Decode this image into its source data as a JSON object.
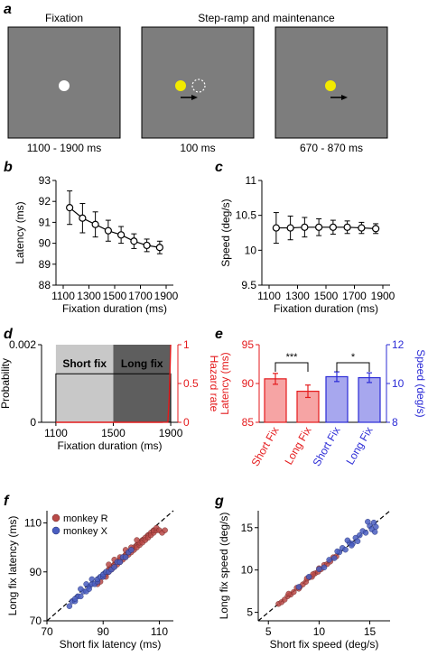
{
  "panel_a": {
    "letter": "a",
    "headers": [
      "Fixation",
      "Step-ramp and maintenance"
    ],
    "durations": [
      "1100 - 1900 ms",
      "100 ms",
      "670 - 870 ms"
    ],
    "colors": {
      "screen": "#7d7d7d",
      "fixation": "#ffffff",
      "target": "#f2ea00",
      "arrow": "#000000"
    }
  },
  "chart_data": [
    {
      "panel": "b",
      "type": "line",
      "xlabel": "Fixation duration (ms)",
      "ylabel": "Latency (ms)",
      "xticks": [
        "1100",
        "1300",
        "1500",
        "1700",
        "1900"
      ],
      "yticks": [
        "88",
        "89",
        "90",
        "91",
        "92",
        "93"
      ],
      "xlim": [
        1100,
        1900
      ],
      "ylim": [
        88,
        93
      ],
      "series": [
        {
          "x": [
            1150,
            1250,
            1350,
            1450,
            1550,
            1650,
            1750,
            1850
          ],
          "y": [
            91.7,
            91.2,
            90.9,
            90.6,
            90.4,
            90.1,
            89.9,
            89.8
          ],
          "err": [
            0.8,
            0.7,
            0.6,
            0.5,
            0.4,
            0.35,
            0.3,
            0.3
          ]
        }
      ]
    },
    {
      "panel": "c",
      "type": "line",
      "xlabel": "Fixation duration (ms)",
      "ylabel": "Speed (deg/s)",
      "xticks": [
        "1100",
        "1300",
        "1500",
        "1700",
        "1900"
      ],
      "yticks": [
        "9.5",
        "10",
        "10.5",
        "11"
      ],
      "xlim": [
        1100,
        1900
      ],
      "ylim": [
        9.5,
        11
      ],
      "series": [
        {
          "x": [
            1150,
            1250,
            1350,
            1450,
            1550,
            1650,
            1750,
            1850
          ],
          "y": [
            10.32,
            10.32,
            10.33,
            10.33,
            10.33,
            10.33,
            10.32,
            10.31
          ],
          "err": [
            0.22,
            0.17,
            0.14,
            0.12,
            0.1,
            0.09,
            0.08,
            0.07
          ]
        }
      ]
    },
    {
      "panel": "d",
      "type": "area",
      "xlabel": "Fixation duration (ms)",
      "ylabel": "Probability",
      "ylabel_right": "Hazard rate",
      "xticks": [
        "1100",
        "1500",
        "1900"
      ],
      "yticks_left": [
        "0",
        "0.002"
      ],
      "yticks_right": [
        "0",
        "0.5",
        "1"
      ],
      "regions": [
        {
          "label": "Short fix",
          "x": [
            1100,
            1500
          ],
          "color": "#c8c8c8"
        },
        {
          "label": "Long fix",
          "x": [
            1500,
            1900
          ],
          "color": "#5e5e5e"
        }
      ],
      "uniform_probability": 0.00125,
      "xlim": [
        1000,
        1950
      ],
      "ylim_right": [
        0,
        1
      ],
      "colors": {
        "hazard": "#e41a1c"
      }
    },
    {
      "panel": "e",
      "type": "bar",
      "categories": [
        "Short Fix",
        "Long Fix",
        "Short Fix",
        "Long Fix"
      ],
      "ylabel_left": "Latency (ms)",
      "ylabel_right": "Speed (deg/s)",
      "yticks_left": [
        "85",
        "90",
        "95"
      ],
      "yticks_right": [
        "8",
        "10",
        "12"
      ],
      "ylim_left": [
        85,
        95
      ],
      "ylim_right": [
        8,
        12
      ],
      "latency": {
        "values": [
          90.6,
          89.0
        ],
        "err": [
          0.7,
          0.8
        ]
      },
      "speed": {
        "values": [
          10.35,
          10.3
        ],
        "err": [
          0.25,
          0.25
        ]
      },
      "significance": [
        "***",
        "*"
      ],
      "colors": {
        "latency": "#e41a1c",
        "latency_fill": "#f6a4a4",
        "speed": "#2b2bd6",
        "speed_fill": "#a7a7ee"
      }
    },
    {
      "panel": "f",
      "type": "scatter",
      "xlabel": "Short fix latency (ms)",
      "ylabel": "Long fix latency (ms)",
      "ticks": [
        "70",
        "90",
        "110"
      ],
      "xlim": [
        70,
        115
      ],
      "ylim": [
        70,
        115
      ],
      "legend": [
        "monkey R",
        "monkey X"
      ],
      "legend_position": "top-left",
      "colors": {
        "monkey_r": "#b94a48",
        "monkey_x": "#4a5ec0"
      },
      "monkey_r": [
        [
          88,
          85
        ],
        [
          89,
          86
        ],
        [
          90,
          88
        ],
        [
          91,
          89
        ],
        [
          91,
          88
        ],
        [
          92,
          90
        ],
        [
          92,
          91
        ],
        [
          93,
          91
        ],
        [
          93,
          92
        ],
        [
          94,
          93
        ],
        [
          94,
          92
        ],
        [
          95,
          94
        ],
        [
          95,
          93
        ],
        [
          96,
          95
        ],
        [
          96,
          94
        ],
        [
          97,
          95
        ],
        [
          97,
          96
        ],
        [
          98,
          96
        ],
        [
          98,
          97
        ],
        [
          99,
          97
        ],
        [
          99,
          98
        ],
        [
          100,
          99
        ],
        [
          100,
          98
        ],
        [
          101,
          100
        ],
        [
          101,
          99
        ],
        [
          102,
          101
        ],
        [
          102,
          100
        ],
        [
          103,
          101
        ],
        [
          103,
          102
        ],
        [
          104,
          103
        ],
        [
          104,
          102
        ],
        [
          105,
          104
        ],
        [
          105,
          103
        ],
        [
          106,
          105
        ],
        [
          106,
          104
        ],
        [
          107,
          106
        ],
        [
          107,
          105
        ],
        [
          108,
          106
        ],
        [
          108,
          107
        ],
        [
          109,
          107
        ],
        [
          109,
          108
        ],
        [
          110,
          107
        ],
        [
          111,
          106
        ],
        [
          112,
          107
        ],
        [
          98,
          99
        ],
        [
          96,
          96
        ],
        [
          94,
          95
        ],
        [
          92,
          93
        ],
        [
          100,
          100
        ],
        [
          102,
          103
        ]
      ],
      "monkey_x": [
        [
          78,
          76
        ],
        [
          79,
          78
        ],
        [
          80,
          78
        ],
        [
          81,
          80
        ],
        [
          82,
          80
        ],
        [
          83,
          82
        ],
        [
          84,
          82
        ],
        [
          85,
          84
        ],
        [
          85,
          83
        ],
        [
          86,
          85
        ],
        [
          87,
          85
        ],
        [
          88,
          86
        ],
        [
          88,
          87
        ],
        [
          89,
          88
        ],
        [
          90,
          88
        ],
        [
          90,
          89
        ],
        [
          91,
          90
        ],
        [
          92,
          90
        ],
        [
          93,
          91
        ],
        [
          94,
          92
        ],
        [
          95,
          94
        ],
        [
          96,
          94
        ],
        [
          97,
          96
        ],
        [
          98,
          96
        ],
        [
          99,
          98
        ],
        [
          100,
          99
        ],
        [
          84,
          85
        ],
        [
          86,
          87
        ],
        [
          80,
          79
        ],
        [
          82,
          83
        ]
      ]
    },
    {
      "panel": "g",
      "type": "scatter",
      "xlabel": "Short fix speed (deg/s)",
      "ylabel": "Long fix speed (deg/s)",
      "ticks": [
        "5",
        "10",
        "15"
      ],
      "xlim": [
        4,
        17
      ],
      "ylim": [
        4,
        17
      ],
      "colors": {
        "monkey_r": "#b94a48",
        "monkey_x": "#4a5ec0"
      },
      "monkey_r": [
        [
          6,
          6
        ],
        [
          6.3,
          6.2
        ],
        [
          6.6,
          6.5
        ],
        [
          6.9,
          6.9
        ],
        [
          7.2,
          7.1
        ],
        [
          7.5,
          7.4
        ],
        [
          7.8,
          7.9
        ],
        [
          8.1,
          8
        ],
        [
          8.4,
          8.3
        ],
        [
          8.7,
          8.6
        ],
        [
          9,
          9.1
        ],
        [
          9.3,
          9.2
        ],
        [
          9.6,
          9.6
        ],
        [
          9.9,
          9.8
        ],
        [
          10.2,
          10.1
        ],
        [
          10.5,
          10.6
        ],
        [
          10.8,
          10.7
        ],
        [
          11.1,
          11
        ],
        [
          11.4,
          11.5
        ],
        [
          11.7,
          11.6
        ],
        [
          8,
          7.8
        ],
        [
          8.8,
          9
        ],
        [
          9.4,
          9.5
        ],
        [
          10,
          10.2
        ],
        [
          7,
          7.2
        ]
      ],
      "monkey_x": [
        [
          8,
          8
        ],
        [
          9,
          9.2
        ],
        [
          10,
          10.1
        ],
        [
          10.5,
          10.3
        ],
        [
          11,
          11.2
        ],
        [
          11.5,
          11.4
        ],
        [
          12,
          12.1
        ],
        [
          12.3,
          12.6
        ],
        [
          12.6,
          12.4
        ],
        [
          13,
          13.2
        ],
        [
          13.3,
          13.1
        ],
        [
          13.6,
          13.8
        ],
        [
          14,
          14.1
        ],
        [
          14.3,
          14.6
        ],
        [
          14.6,
          14.4
        ],
        [
          15,
          15.2
        ],
        [
          15.2,
          14.8
        ],
        [
          15.4,
          15.6
        ],
        [
          15.6,
          15.1
        ],
        [
          12.8,
          13.5
        ],
        [
          13.8,
          13.4
        ],
        [
          11.8,
          12.2
        ],
        [
          14.8,
          15.7
        ],
        [
          13.2,
          12.9
        ],
        [
          15.5,
          14.5
        ]
      ]
    }
  ]
}
